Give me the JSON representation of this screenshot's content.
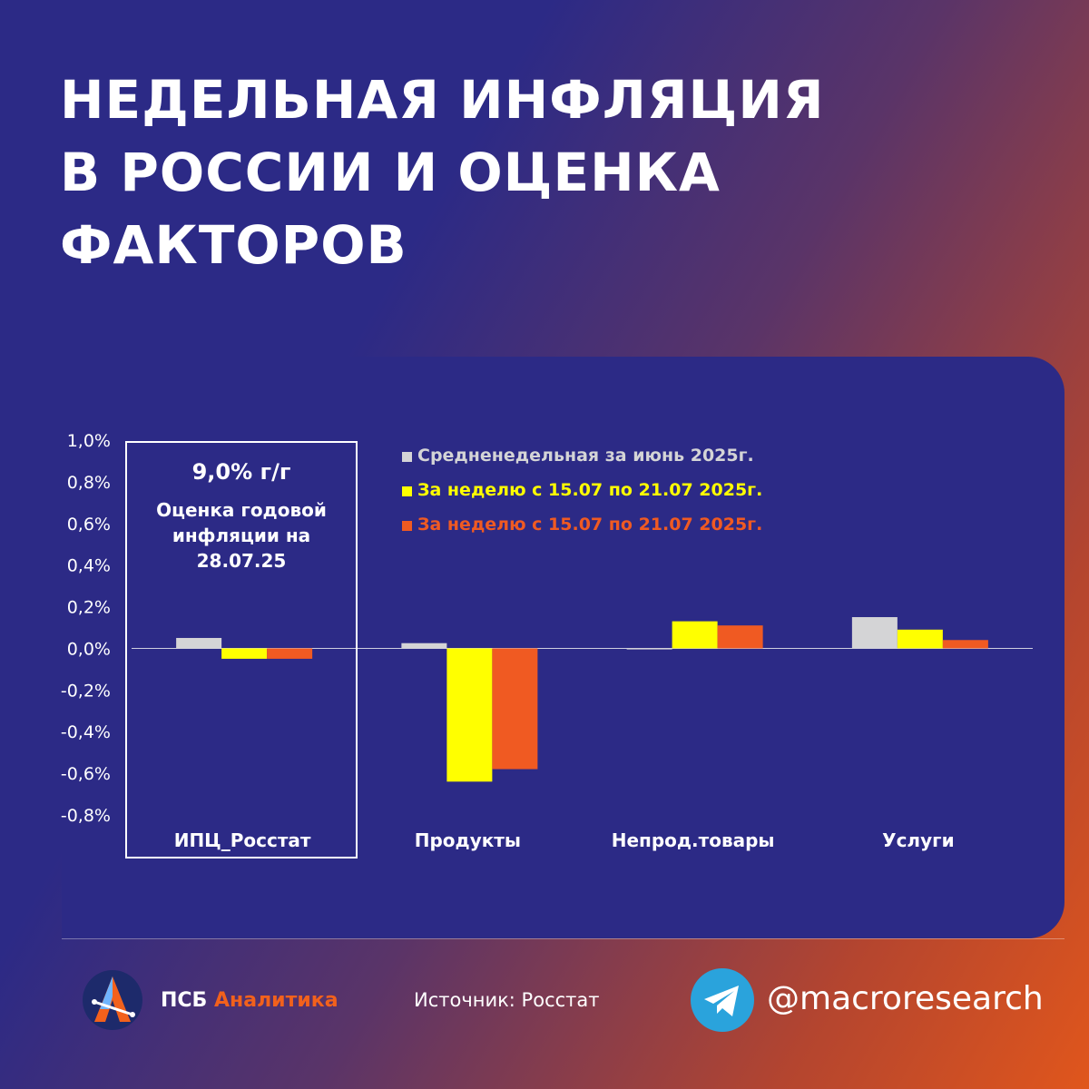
{
  "title": [
    "НЕДЕЛЬНАЯ ИНФЛЯЦИЯ",
    "В РОССИИ И ОЦЕНКА",
    "ФАКТОРОВ"
  ],
  "callout": {
    "value": "9,0% г/г",
    "label": "Оценка годовой инфляции на 28.07.25"
  },
  "chart_data": {
    "type": "bar",
    "title": "",
    "xlabel": "",
    "ylabel": "",
    "ylim": [
      -0.8,
      1.0
    ],
    "yticks": [
      1.0,
      0.8,
      0.6,
      0.4,
      0.2,
      0.0,
      -0.2,
      -0.4,
      -0.6,
      -0.8
    ],
    "ytick_labels": [
      "1,0%",
      "0,8%",
      "0,6%",
      "0,4%",
      "0,2%",
      "0,0%",
      "-0,2%",
      "-0,4%",
      "-0,6%",
      "-0,8%"
    ],
    "categories": [
      "ИПЦ_Росстат",
      "Продукты",
      "Непрод.товары",
      "Услуги"
    ],
    "series": [
      {
        "name": "Средненедельная за июнь 2025г.",
        "color": "#d4d4d6",
        "values": [
          0.05,
          0.025,
          -0.005,
          0.15
        ]
      },
      {
        "name": "За неделю с 15.07 по 21.07 2025г.",
        "color": "#ffff00",
        "values": [
          -0.05,
          -0.64,
          0.13,
          0.09
        ]
      },
      {
        "name": "За неделю с 15.07 по 21.07 2025г.",
        "color": "#f05a22",
        "values": [
          -0.05,
          -0.58,
          0.11,
          0.04
        ]
      }
    ],
    "legend_position": "top-right"
  },
  "footer": {
    "brand_main": "ПСБ",
    "brand_accent": "Аналитика",
    "source": "Источник: Росстат",
    "handle": "@macroresearch"
  },
  "icons": {
    "logo": "psb-analytics-logo-icon",
    "telegram": "telegram-icon"
  }
}
